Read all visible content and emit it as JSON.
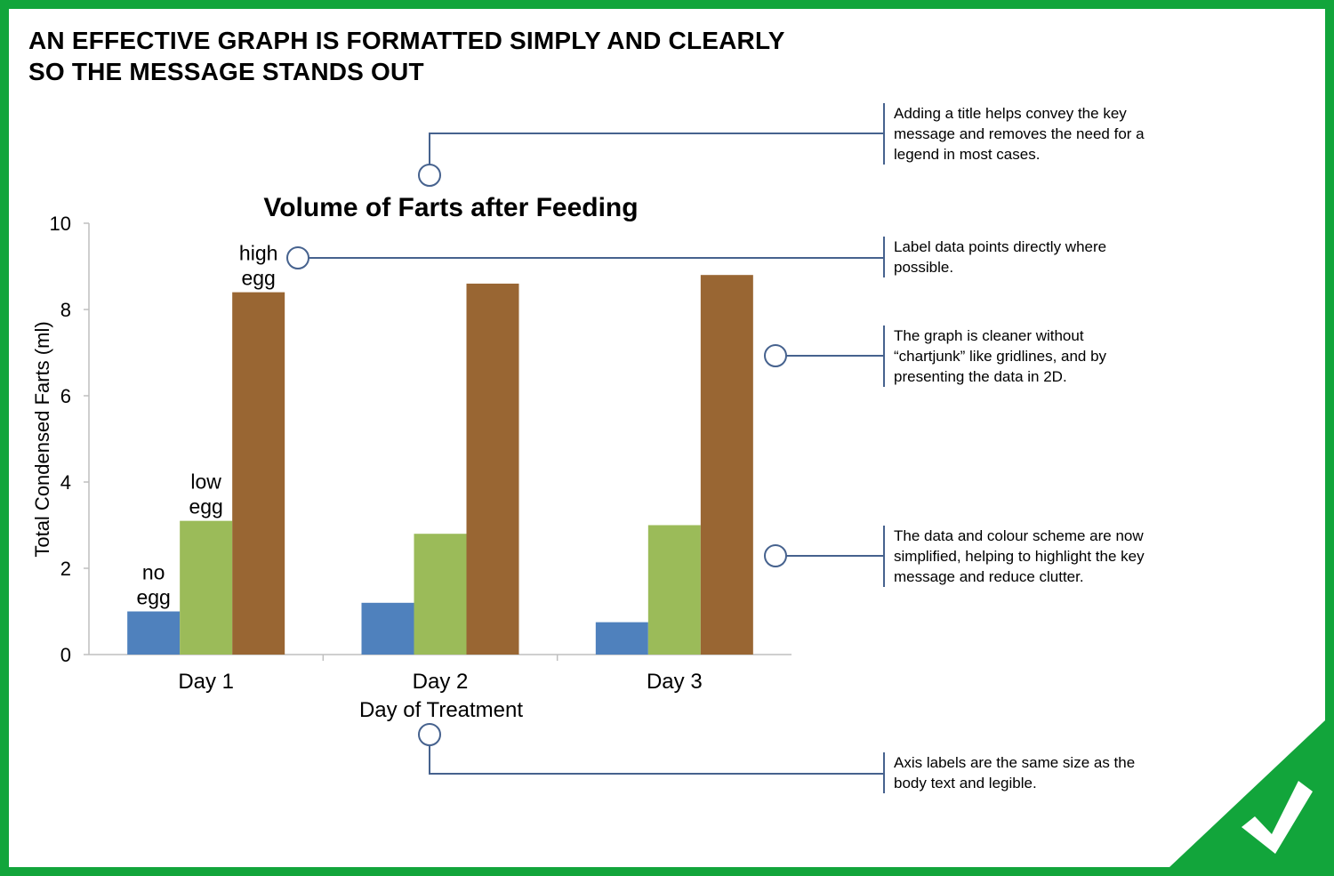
{
  "headline": {
    "line1": "AN EFFECTIVE GRAPH IS FORMATTED SIMPLY AND CLEARLY",
    "line2": "SO THE MESSAGE STANDS OUT"
  },
  "chart_data": {
    "type": "bar",
    "title": "Volume of Farts after Feeding",
    "xlabel": "Day of Treatment",
    "ylabel": "Total Condensed Farts (ml)",
    "categories": [
      "Day 1",
      "Day 2",
      "Day 3"
    ],
    "series": [
      {
        "label_line1": "no",
        "label_line2": "egg",
        "color": "#4f81bd",
        "values": [
          1.0,
          1.2,
          0.75
        ]
      },
      {
        "label_line1": "low",
        "label_line2": "egg",
        "color": "#9bbb59",
        "values": [
          3.1,
          2.8,
          3.0
        ]
      },
      {
        "label_line1": "high",
        "label_line2": "egg",
        "color": "#996633",
        "values": [
          8.4,
          8.6,
          8.8
        ]
      }
    ],
    "yticks": [
      "0",
      "2",
      "4",
      "6",
      "8",
      "10"
    ],
    "ylim": [
      0,
      10
    ],
    "grid": false
  },
  "notes": [
    {
      "lines": [
        "Adding a title helps convey the key",
        "message and removes the need for a",
        "legend in most cases."
      ]
    },
    {
      "lines": [
        "Label data points directly where",
        "possible."
      ]
    },
    {
      "lines": [
        "The graph is cleaner without",
        "“chartjunk” like gridlines, and by",
        "presenting the data in 2D."
      ]
    },
    {
      "lines": [
        "The data and colour scheme are now",
        "simplified, helping to highlight the key",
        "message and reduce clutter."
      ]
    },
    {
      "lines": [
        "Axis labels are the same size as the",
        "body text and legible."
      ]
    }
  ],
  "colors": {
    "frame": "#12a53b",
    "callout_line": "#46628e",
    "axis": "#bfbfbf",
    "check_mark": "#ffffff"
  },
  "icons": {
    "corner": "check-mark-icon"
  }
}
